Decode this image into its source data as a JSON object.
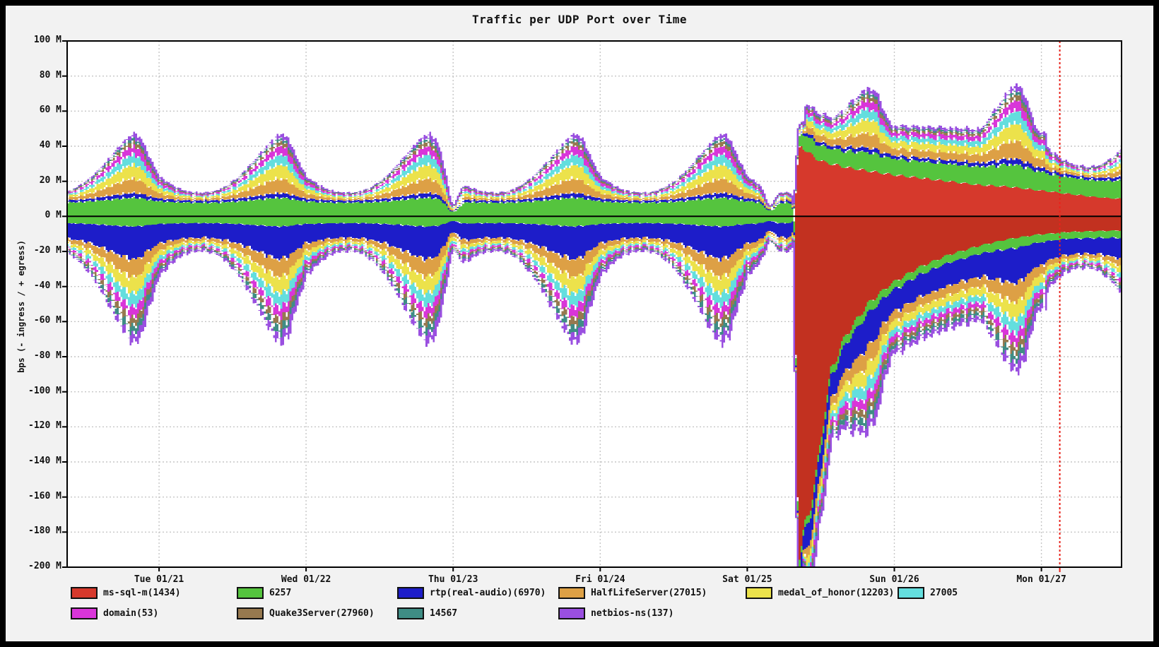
{
  "window": {
    "background": "#f2f2f2",
    "frame_color": "#000000"
  },
  "chart_data": {
    "type": "area",
    "subtype": "stacked-mirrored-ingress-egress",
    "title": "Traffic per UDP Port over Time",
    "ylabel": "bps (- ingress / + egress)",
    "ylim": [
      -200,
      100
    ],
    "y_tick_step": 20,
    "y_tick_suffix": " M",
    "x_day_labels": [
      "Tue 01/21",
      "Wed 01/22",
      "Thu 01/23",
      "Fri 01/24",
      "Sat 01/25",
      "Sun 01/26",
      "Mon 01/27"
    ],
    "time_span_days": 7.17,
    "first_day_tick_offset_days": 0.625,
    "day_tick_interval_days": 1.0,
    "now_marker_t": 6.75,
    "grid": "dotted",
    "grid_color": "#c6c6c6",
    "now_marker_color": "#e8231c",
    "axis_color": "#000000",
    "plot_background": "#ffffff",
    "units": "Mbps",
    "legend_rows": [
      [
        0,
        1,
        2,
        3,
        4,
        5
      ],
      [
        6,
        7,
        8,
        9
      ]
    ],
    "series": [
      {
        "name": "ms-sql-m(1434)",
        "color": "#d6392c",
        "ingress_color": "#c23120",
        "egress_base": 0.3,
        "egress_amp": 0,
        "ingress_base": 0.3,
        "ingress_amp": 0,
        "worm": true
      },
      {
        "name": "6257",
        "color": "#55c43e",
        "egress_base": 7.5,
        "egress_amp": 3,
        "ingress_base": 3.5,
        "ingress_amp": 2
      },
      {
        "name": "rtp(real-audio)(6970)",
        "color": "#1d1dc9",
        "egress_base": 1.2,
        "egress_amp": 1.5,
        "ingress_base": 8,
        "ingress_amp": 11
      },
      {
        "name": "HalfLifeServer(27015)",
        "color": "#dda045",
        "egress_base": 0.8,
        "egress_amp": 7.5,
        "ingress_base": 1.5,
        "ingress_amp": 9
      },
      {
        "name": "medal_of_honor(12203)",
        "color": "#ece24b",
        "egress_base": 0.6,
        "egress_amp": 7.5,
        "ingress_base": 1.0,
        "ingress_amp": 8.5
      },
      {
        "name": "27005",
        "color": "#63dede",
        "egress_base": 0.4,
        "egress_amp": 5.5,
        "ingress_base": 0.7,
        "ingress_amp": 7
      },
      {
        "name": "domain(53)",
        "color": "#d935d9",
        "egress_base": 0.5,
        "egress_amp": 4.5,
        "ingress_base": 0.8,
        "ingress_amp": 5.5
      },
      {
        "name": "Quake3Server(27960)",
        "color": "#97794f",
        "egress_base": 0.2,
        "egress_amp": 2.5,
        "ingress_base": 0.4,
        "ingress_amp": 4.5
      },
      {
        "name": "14567",
        "color": "#3f8d85",
        "egress_base": 0.15,
        "egress_amp": 1.5,
        "ingress_base": 0.3,
        "ingress_amp": 4.5
      },
      {
        "name": "netbios-ns(137)",
        "color": "#9a4fe0",
        "egress_base": 0.25,
        "egress_amp": 2.0,
        "ingress_base": 0.8,
        "ingress_amp": 3.5
      }
    ],
    "daily_wave": [
      [
        0,
        0.3
      ],
      [
        0.05,
        0.22
      ],
      [
        0.12,
        0.12
      ],
      [
        0.2,
        0.06
      ],
      [
        0.3,
        0.04
      ],
      [
        0.38,
        0.07
      ],
      [
        0.46,
        0.16
      ],
      [
        0.54,
        0.3
      ],
      [
        0.62,
        0.5
      ],
      [
        0.7,
        0.72
      ],
      [
        0.78,
        0.93
      ],
      [
        0.83,
        1.0
      ],
      [
        0.88,
        0.9
      ],
      [
        0.93,
        0.62
      ],
      [
        1,
        0.3
      ]
    ],
    "weekend": {
      "start": 5.02,
      "end": 6.655,
      "floor": 0.42,
      "boost_center": 5.4,
      "boost_ramp": 1.0,
      "egress_boost": 0.25,
      "ingress_boost": 0.06
    },
    "dips": [
      {
        "t": 2.625,
        "sigma": 0.035,
        "egress_depth": 0.72,
        "ingress_depth": 0.42
      },
      {
        "t": 4.78,
        "sigma": 0.03,
        "egress_depth": 0.62,
        "ingress_depth": 0.35
      },
      {
        "t": 4.952,
        "sigma": 0.013,
        "egress_depth": 0.85,
        "ingress_depth": 0.5
      }
    ],
    "worm_event": {
      "series": "ms-sql-m(1434)",
      "description_points_t_egress_ingressM": [
        [
          0,
          0.3,
          0.3
        ],
        [
          4.94,
          0.3,
          0.3
        ],
        [
          4.955,
          20,
          120
        ],
        [
          4.97,
          38,
          196
        ],
        [
          5.0,
          40,
          188
        ],
        [
          5.05,
          36,
          168
        ],
        [
          5.1,
          33,
          148
        ],
        [
          5.15,
          31,
          116
        ],
        [
          5.2,
          30,
          88
        ],
        [
          5.3,
          28,
          68
        ],
        [
          5.45,
          26,
          50
        ],
        [
          5.6,
          24,
          39
        ],
        [
          5.8,
          22,
          29
        ],
        [
          6.0,
          20,
          22
        ],
        [
          6.2,
          18,
          17
        ],
        [
          6.4,
          17,
          13
        ],
        [
          6.6,
          15,
          10.5
        ],
        [
          6.8,
          13,
          9
        ],
        [
          7.0,
          11,
          8.5
        ],
        [
          7.17,
          10,
          8
        ]
      ]
    },
    "sample_step_days": 0.0125,
    "jitter": 0.09
  }
}
